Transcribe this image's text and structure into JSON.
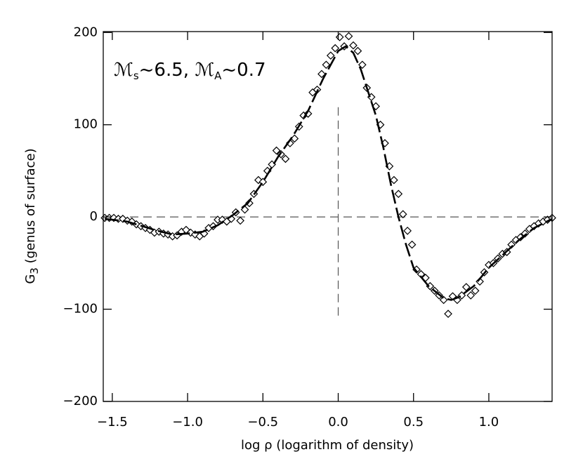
{
  "chart_data": {
    "type": "scatter",
    "annotation": [
      "ℳ",
      "s",
      "~6.5, ",
      "ℳ",
      "A",
      "~0.7"
    ],
    "xlabel": "log ρ (logarithm of density)",
    "ylabel": [
      "G",
      "3",
      " (genus of surface)"
    ],
    "xlim": [
      -1.56,
      1.42
    ],
    "ylim": [
      -200,
      201
    ],
    "xticks": [
      {
        "value": -1.5,
        "label": "−1.5"
      },
      {
        "value": -1.0,
        "label": "−1.0"
      },
      {
        "value": -0.5,
        "label": "−0.5"
      },
      {
        "value": 0.0,
        "label": "0.0"
      },
      {
        "value": 0.5,
        "label": "0.5"
      },
      {
        "value": 1.0,
        "label": "1.0"
      }
    ],
    "yticks": [
      {
        "value": -200,
        "label": "−200"
      },
      {
        "value": -100,
        "label": "−100"
      },
      0,
      100,
      200
    ],
    "hlines": [
      0
    ],
    "vlines": [
      {
        "x": 0,
        "y": [
          -107,
          122
        ]
      }
    ],
    "color": "#000000",
    "series": [
      {
        "kind": "scatter",
        "x": [
          -1.55,
          -1.52,
          -1.49,
          -1.46,
          -1.43,
          -1.4,
          -1.37,
          -1.34,
          -1.31,
          -1.28,
          -1.25,
          -1.22,
          -1.19,
          -1.16,
          -1.13,
          -1.1,
          -1.07,
          -1.04,
          -1.01,
          -0.98,
          -0.95,
          -0.92,
          -0.89,
          -0.86,
          -0.83,
          -0.8,
          -0.77,
          -0.74,
          -0.71,
          -0.68,
          -0.65,
          -0.62,
          -0.59,
          -0.56,
          -0.53,
          -0.5,
          -0.47,
          -0.44,
          -0.41,
          -0.38,
          -0.35,
          -0.32,
          -0.29,
          -0.26,
          -0.23,
          -0.2,
          -0.17,
          -0.14,
          -0.11,
          -0.08,
          -0.05,
          -0.02,
          0.01,
          0.04,
          0.07,
          0.1,
          0.13,
          0.16,
          0.19,
          0.22,
          0.25,
          0.28,
          0.31,
          0.34,
          0.37,
          0.4,
          0.43,
          0.46,
          0.49,
          0.52,
          0.55,
          0.58,
          0.61,
          0.64,
          0.67,
          0.7,
          0.73,
          0.76,
          0.79,
          0.82,
          0.85,
          0.88,
          0.91,
          0.94,
          0.97,
          1.0,
          1.03,
          1.06,
          1.09,
          1.12,
          1.15,
          1.18,
          1.21,
          1.24,
          1.27,
          1.3,
          1.33,
          1.36,
          1.39,
          1.42
        ],
        "values": [
          -1,
          -1,
          -1,
          -2,
          -2,
          -4,
          -5,
          -8,
          -10,
          -12,
          -14,
          -17,
          -16,
          -18,
          -19,
          -21,
          -20,
          -16,
          -14,
          -17,
          -19,
          -21,
          -18,
          -12,
          -10,
          -3,
          -3,
          -5,
          -2,
          5,
          -4,
          8,
          15,
          25,
          40,
          38,
          50,
          57,
          72,
          68,
          63,
          80,
          85,
          98,
          110,
          112,
          135,
          138,
          155,
          165,
          175,
          183,
          195,
          185,
          196,
          186,
          180,
          165,
          140,
          130,
          120,
          100,
          80,
          55,
          40,
          25,
          3,
          -15,
          -30,
          -57,
          -62,
          -66,
          -75,
          -80,
          -85,
          -90,
          -105,
          -86,
          -90,
          -85,
          -76,
          -85,
          -80,
          -70,
          -60,
          -52,
          -50,
          -45,
          -40,
          -38,
          -30,
          -25,
          -22,
          -18,
          -13,
          -10,
          -7,
          -5,
          -3,
          -1
        ]
      },
      {
        "kind": "line",
        "x": [
          -1.55,
          -1.4,
          -1.3,
          -1.2,
          -1.1,
          -1.0,
          -0.9,
          -0.8,
          -0.7,
          -0.6,
          -0.5,
          -0.4,
          -0.3,
          -0.2,
          -0.1,
          0.0,
          0.05,
          0.1,
          0.15,
          0.2,
          0.25,
          0.3,
          0.35,
          0.4,
          0.45,
          0.5,
          0.6,
          0.7,
          0.75,
          0.8,
          0.9,
          1.0,
          1.1,
          1.2,
          1.3,
          1.42
        ],
        "values": [
          -2,
          -5,
          -10,
          -15,
          -19,
          -18,
          -16,
          -9,
          2,
          15,
          38,
          65,
          88,
          115,
          150,
          180,
          185,
          178,
          160,
          135,
          110,
          75,
          35,
          0,
          -30,
          -55,
          -75,
          -88,
          -90,
          -87,
          -75,
          -55,
          -40,
          -25,
          -12,
          -2
        ]
      }
    ]
  }
}
